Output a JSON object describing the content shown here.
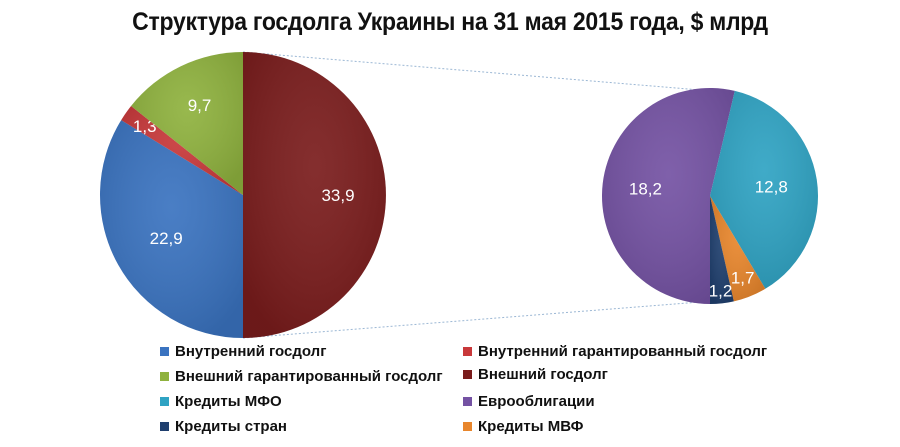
{
  "chart_data": {
    "type": "pie",
    "subtype": "pie-of-pie",
    "title": "Структура госдолга Украины на 31 мая 2015 года, $ млрд",
    "main_pie": {
      "categories": [
        "Внешний госдолг",
        "Внутренний госдолг",
        "Внутренний гарантированный госдолг",
        "Внешний гарантированный госдолг"
      ],
      "values": [
        33.9,
        22.9,
        1.3,
        9.7
      ],
      "labels": [
        "33,9",
        "22,9",
        "1,3",
        "9,7"
      ],
      "colors": [
        "#7a1c1c",
        "#3a73c0",
        "#c8383a",
        "#8fb23e"
      ]
    },
    "secondary_pie": {
      "breakdown_of": "Внешний госдолг",
      "categories": [
        "Еврооблигации",
        "Кредиты МФО",
        "Кредиты МВФ",
        "Кредиты стран"
      ],
      "values": [
        18.2,
        12.8,
        1.7,
        1.2
      ],
      "labels": [
        "18,2",
        "12,8",
        "1,7",
        "1,2"
      ],
      "colors": [
        "#7452a3",
        "#2fa3c3",
        "#e8862c",
        "#1f3f6e"
      ]
    },
    "legend": [
      {
        "label": "Внутренний госдолг",
        "color": "#3a73c0"
      },
      {
        "label": "Внутренний гарантированный госдолг",
        "color": "#c8383a"
      },
      {
        "label": "Внешний гарантированный госдолг",
        "color": "#8fb23e"
      },
      {
        "label": "Внешний госдолг",
        "color": "#7a1c1c"
      },
      {
        "label": "Кредиты МФО",
        "color": "#2fa3c3"
      },
      {
        "label": "Еврооблигации",
        "color": "#7452a3"
      },
      {
        "label": "Кредиты стран",
        "color": "#1f3f6e"
      },
      {
        "label": "Кредиты МВФ",
        "color": "#e8862c"
      }
    ],
    "legend_position": "bottom"
  }
}
